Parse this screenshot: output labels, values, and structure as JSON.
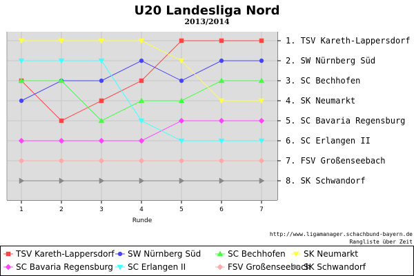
{
  "chart_data": {
    "type": "line",
    "title": "U20 Landesliga Nord",
    "subtitle": "2013/2014",
    "xlabel": "Runde",
    "ylabel": "",
    "x": [
      1,
      2,
      3,
      4,
      5,
      6,
      7
    ],
    "ylim": [
      8,
      1
    ],
    "y_inverted": true,
    "grid": true,
    "legend_position": "bottom",
    "rank_labels": [
      "1. TSV Kareth-Lappersdorf",
      "2. SW Nürnberg Süd",
      "3. SC Bechhofen",
      "4. SK Neumarkt",
      "5. SC Bavaria Regensburg",
      "6. SC Erlangen II",
      "7. FSV Großenseebach",
      "8. SK Schwandorf"
    ],
    "series": [
      {
        "name": "TSV Kareth-Lappersdorf",
        "color": "#ff4444",
        "marker": "square",
        "values": [
          3,
          5,
          4,
          3,
          1,
          1,
          1
        ]
      },
      {
        "name": "SW Nürnberg Süd",
        "color": "#4444ff",
        "marker": "circle",
        "values": [
          4,
          3,
          3,
          2,
          3,
          2,
          2
        ]
      },
      {
        "name": "SC Bechhofen",
        "color": "#44ff44",
        "marker": "triangle-up",
        "values": [
          3,
          3,
          5,
          4,
          4,
          3,
          3
        ]
      },
      {
        "name": "SK Neumarkt",
        "color": "#ffff44",
        "marker": "triangle-down",
        "values": [
          1,
          1,
          1,
          1,
          2,
          4,
          4
        ]
      },
      {
        "name": "SC Bavaria Regensburg",
        "color": "#ff44ff",
        "marker": "diamond",
        "values": [
          6,
          6,
          6,
          6,
          5,
          5,
          5
        ]
      },
      {
        "name": "SC Erlangen II",
        "color": "#44ffff",
        "marker": "triangle-down",
        "values": [
          2,
          2,
          2,
          5,
          6,
          6,
          6
        ]
      },
      {
        "name": "FSV Großenseebach",
        "color": "#ffaaaa",
        "marker": "diamond",
        "values": [
          7,
          7,
          7,
          7,
          7,
          7,
          7
        ]
      },
      {
        "name": "SK Schwandorf",
        "color": "#888888",
        "marker": "triangle-right",
        "values": [
          8,
          8,
          8,
          8,
          8,
          8,
          8
        ]
      }
    ]
  },
  "footer": {
    "url": "http://www.ligamanager.schachbund-bayern.de",
    "caption": "Rangliste über Zeit"
  },
  "colors": {
    "plot_background": "#dddddd",
    "grid": "#c8c8c8"
  }
}
